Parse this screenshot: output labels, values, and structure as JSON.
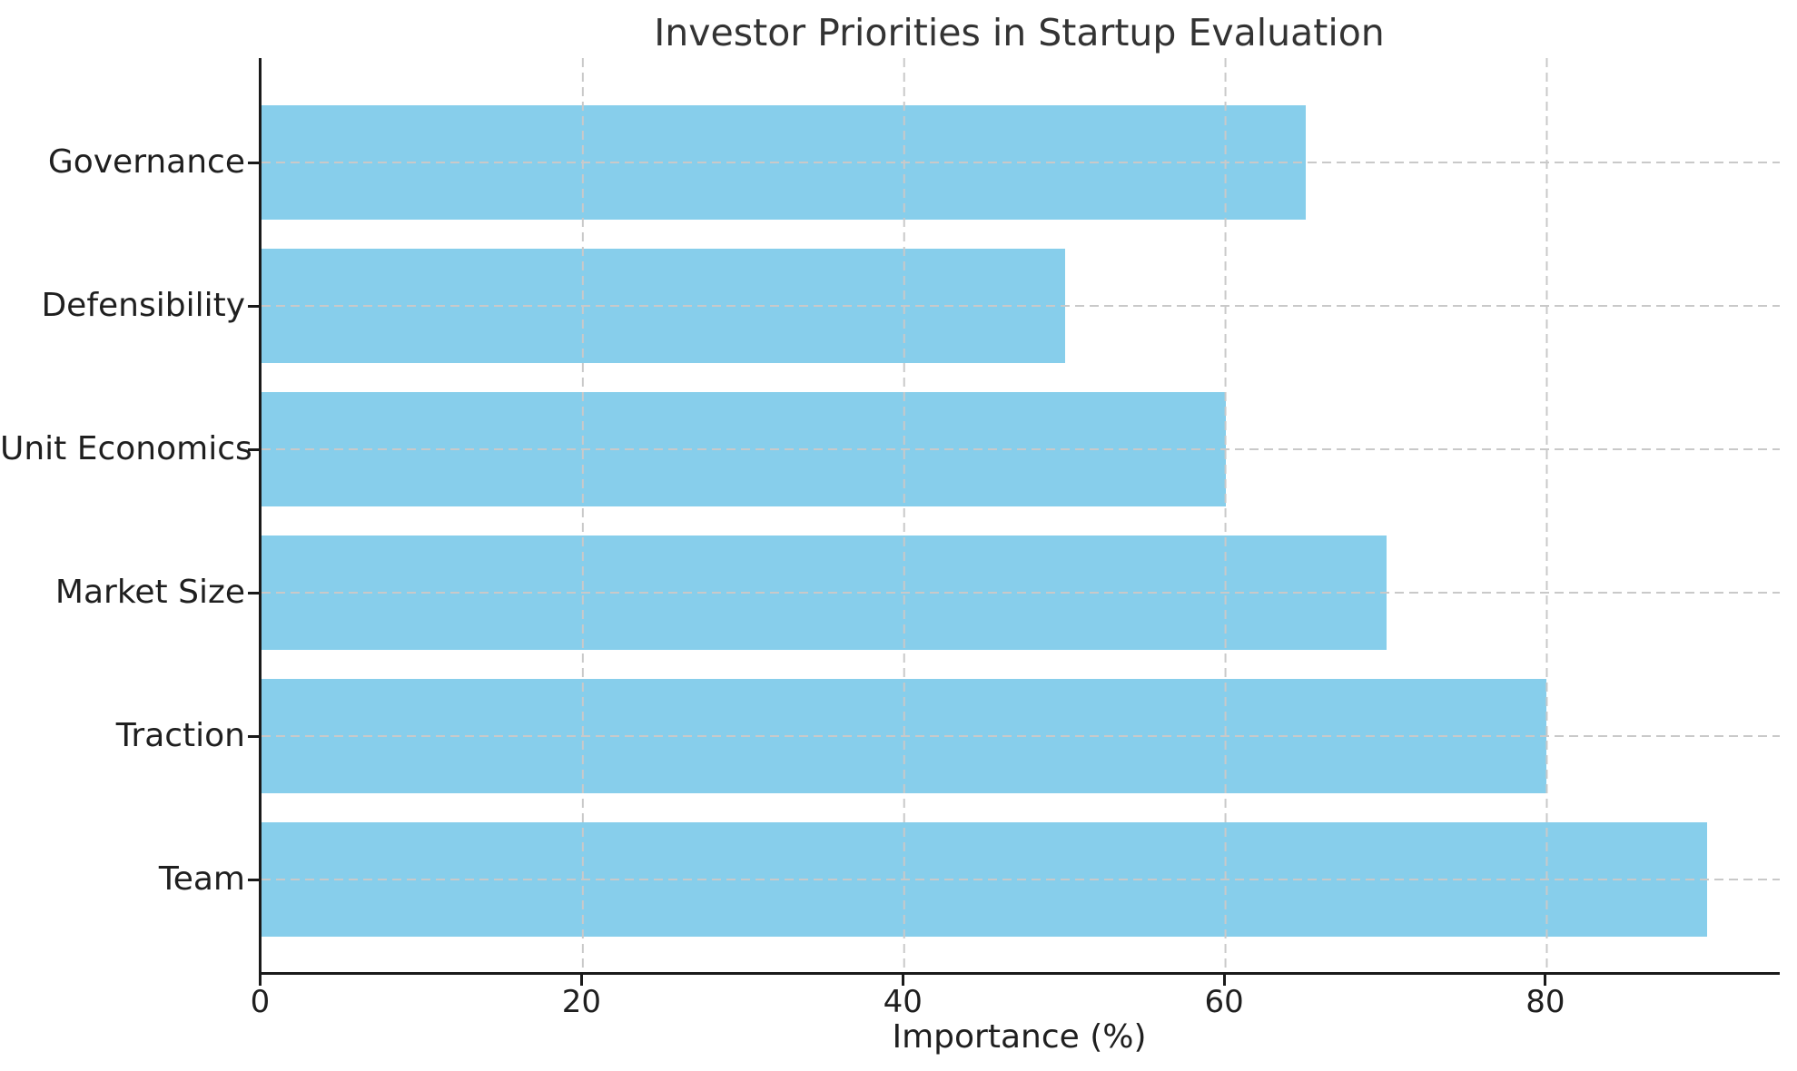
{
  "chart_data": {
    "type": "bar",
    "orientation": "horizontal",
    "title": "Investor Priorities in Startup Evaluation",
    "xlabel": "Importance (%)",
    "ylabel": "",
    "categories": [
      "Governance",
      "Defensibility",
      "Unit Economics",
      "Market Size",
      "Traction",
      "Team"
    ],
    "category_order": "top-to-bottom",
    "values": [
      65,
      50,
      60,
      70,
      80,
      90
    ],
    "x_ticks": [
      0,
      20,
      40,
      60,
      80
    ],
    "xlim": [
      0,
      94.5
    ],
    "grid": {
      "style": "dashed",
      "axes": "both",
      "above_bars": true
    },
    "legend_position": "none",
    "colors": {
      "bar": "#87CEEB",
      "grid": "#c9c9c9",
      "spine": "#1a1a1a",
      "tick_text": "#1f1f1f",
      "title_text": "#333333",
      "background": "#ffffff"
    }
  }
}
